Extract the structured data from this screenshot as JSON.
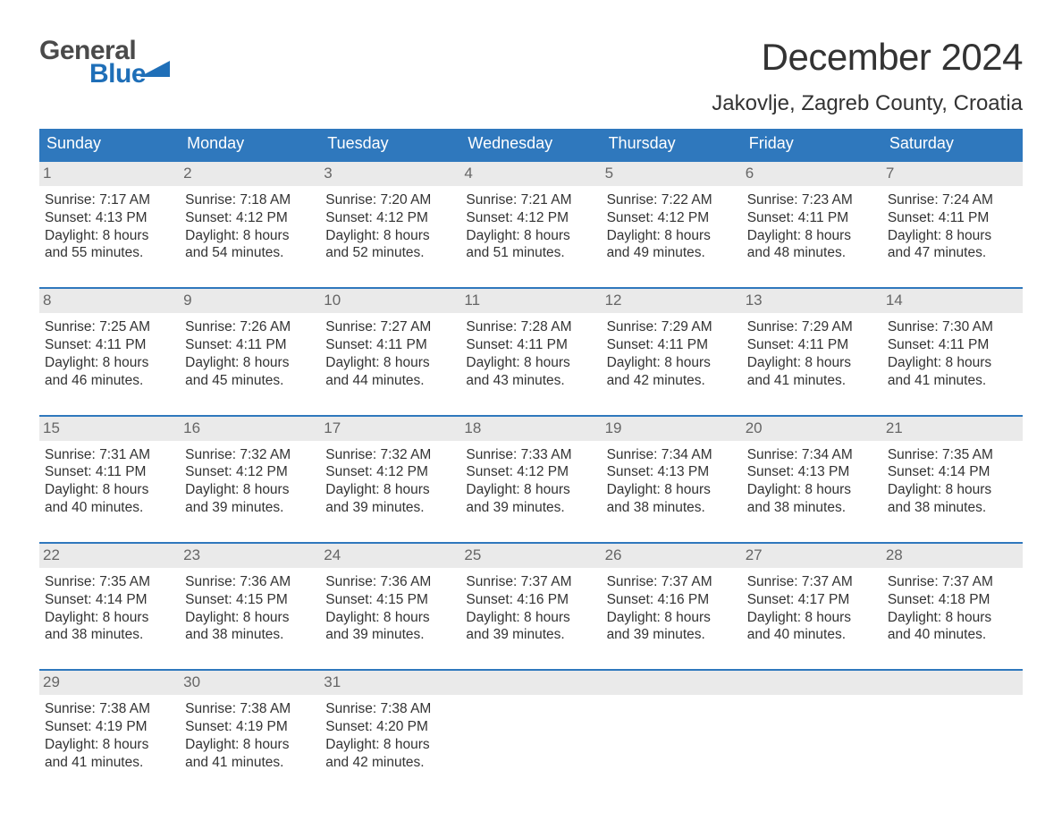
{
  "logo": {
    "line1": "General",
    "line2": "Blue"
  },
  "title": "December 2024",
  "location": "Jakovlje, Zagreb County, Croatia",
  "colors": {
    "header_bg": "#2f78bd",
    "header_text": "#ffffff",
    "daynum_bg": "#eaeaea",
    "daynum_text": "#666666",
    "body_text": "#333333",
    "week_border": "#2f78bd",
    "logo_gray": "#4a4a4a",
    "logo_blue": "#1f6fb8",
    "page_bg": "#ffffff"
  },
  "days_of_week": [
    "Sunday",
    "Monday",
    "Tuesday",
    "Wednesday",
    "Thursday",
    "Friday",
    "Saturday"
  ],
  "weeks": [
    [
      {
        "n": "1",
        "sunrise": "7:17 AM",
        "sunset": "4:13 PM",
        "daylight": "8 hours and 55 minutes."
      },
      {
        "n": "2",
        "sunrise": "7:18 AM",
        "sunset": "4:12 PM",
        "daylight": "8 hours and 54 minutes."
      },
      {
        "n": "3",
        "sunrise": "7:20 AM",
        "sunset": "4:12 PM",
        "daylight": "8 hours and 52 minutes."
      },
      {
        "n": "4",
        "sunrise": "7:21 AM",
        "sunset": "4:12 PM",
        "daylight": "8 hours and 51 minutes."
      },
      {
        "n": "5",
        "sunrise": "7:22 AM",
        "sunset": "4:12 PM",
        "daylight": "8 hours and 49 minutes."
      },
      {
        "n": "6",
        "sunrise": "7:23 AM",
        "sunset": "4:11 PM",
        "daylight": "8 hours and 48 minutes."
      },
      {
        "n": "7",
        "sunrise": "7:24 AM",
        "sunset": "4:11 PM",
        "daylight": "8 hours and 47 minutes."
      }
    ],
    [
      {
        "n": "8",
        "sunrise": "7:25 AM",
        "sunset": "4:11 PM",
        "daylight": "8 hours and 46 minutes."
      },
      {
        "n": "9",
        "sunrise": "7:26 AM",
        "sunset": "4:11 PM",
        "daylight": "8 hours and 45 minutes."
      },
      {
        "n": "10",
        "sunrise": "7:27 AM",
        "sunset": "4:11 PM",
        "daylight": "8 hours and 44 minutes."
      },
      {
        "n": "11",
        "sunrise": "7:28 AM",
        "sunset": "4:11 PM",
        "daylight": "8 hours and 43 minutes."
      },
      {
        "n": "12",
        "sunrise": "7:29 AM",
        "sunset": "4:11 PM",
        "daylight": "8 hours and 42 minutes."
      },
      {
        "n": "13",
        "sunrise": "7:29 AM",
        "sunset": "4:11 PM",
        "daylight": "8 hours and 41 minutes."
      },
      {
        "n": "14",
        "sunrise": "7:30 AM",
        "sunset": "4:11 PM",
        "daylight": "8 hours and 41 minutes."
      }
    ],
    [
      {
        "n": "15",
        "sunrise": "7:31 AM",
        "sunset": "4:11 PM",
        "daylight": "8 hours and 40 minutes."
      },
      {
        "n": "16",
        "sunrise": "7:32 AM",
        "sunset": "4:12 PM",
        "daylight": "8 hours and 39 minutes."
      },
      {
        "n": "17",
        "sunrise": "7:32 AM",
        "sunset": "4:12 PM",
        "daylight": "8 hours and 39 minutes."
      },
      {
        "n": "18",
        "sunrise": "7:33 AM",
        "sunset": "4:12 PM",
        "daylight": "8 hours and 39 minutes."
      },
      {
        "n": "19",
        "sunrise": "7:34 AM",
        "sunset": "4:13 PM",
        "daylight": "8 hours and 38 minutes."
      },
      {
        "n": "20",
        "sunrise": "7:34 AM",
        "sunset": "4:13 PM",
        "daylight": "8 hours and 38 minutes."
      },
      {
        "n": "21",
        "sunrise": "7:35 AM",
        "sunset": "4:14 PM",
        "daylight": "8 hours and 38 minutes."
      }
    ],
    [
      {
        "n": "22",
        "sunrise": "7:35 AM",
        "sunset": "4:14 PM",
        "daylight": "8 hours and 38 minutes."
      },
      {
        "n": "23",
        "sunrise": "7:36 AM",
        "sunset": "4:15 PM",
        "daylight": "8 hours and 38 minutes."
      },
      {
        "n": "24",
        "sunrise": "7:36 AM",
        "sunset": "4:15 PM",
        "daylight": "8 hours and 39 minutes."
      },
      {
        "n": "25",
        "sunrise": "7:37 AM",
        "sunset": "4:16 PM",
        "daylight": "8 hours and 39 minutes."
      },
      {
        "n": "26",
        "sunrise": "7:37 AM",
        "sunset": "4:16 PM",
        "daylight": "8 hours and 39 minutes."
      },
      {
        "n": "27",
        "sunrise": "7:37 AM",
        "sunset": "4:17 PM",
        "daylight": "8 hours and 40 minutes."
      },
      {
        "n": "28",
        "sunrise": "7:37 AM",
        "sunset": "4:18 PM",
        "daylight": "8 hours and 40 minutes."
      }
    ],
    [
      {
        "n": "29",
        "sunrise": "7:38 AM",
        "sunset": "4:19 PM",
        "daylight": "8 hours and 41 minutes."
      },
      {
        "n": "30",
        "sunrise": "7:38 AM",
        "sunset": "4:19 PM",
        "daylight": "8 hours and 41 minutes."
      },
      {
        "n": "31",
        "sunrise": "7:38 AM",
        "sunset": "4:20 PM",
        "daylight": "8 hours and 42 minutes."
      },
      {
        "n": "",
        "empty": true
      },
      {
        "n": "",
        "empty": true
      },
      {
        "n": "",
        "empty": true
      },
      {
        "n": "",
        "empty": true
      }
    ]
  ],
  "labels": {
    "sunrise": "Sunrise:",
    "sunset": "Sunset:",
    "daylight": "Daylight:"
  }
}
